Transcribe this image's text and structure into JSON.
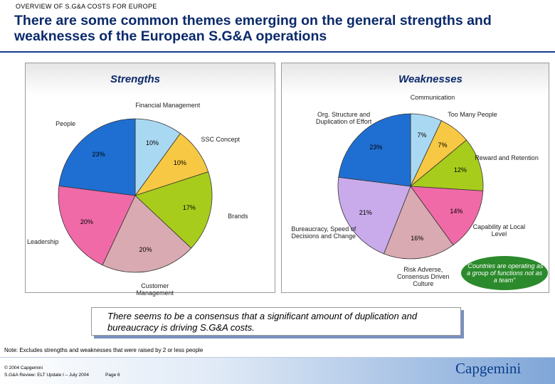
{
  "header": {
    "kicker": "OVERVIEW OF S.G&A COSTS FOR EUROPE",
    "title": "There are some common themes emerging on the general strengths and weaknesses of the European S.G&A operations"
  },
  "chart_data": [
    {
      "type": "pie",
      "title": "Strengths",
      "categories": [
        "Financial Management",
        "SSC Concept",
        "Brands",
        "Customer Management",
        "Leadership",
        "People"
      ],
      "values": [
        10,
        10,
        17,
        20,
        20,
        23
      ],
      "value_labels": [
        "10%",
        "10%",
        "17%",
        "20%",
        "20%",
        "23%"
      ],
      "colors": [
        "#a9d9f2",
        "#f7c843",
        "#a8cc1c",
        "#d9aab2",
        "#f06aa8",
        "#1f6fd2"
      ]
    },
    {
      "type": "pie",
      "title": "Weaknesses",
      "categories": [
        "Communication",
        "Too Many People",
        "Reward and Retention",
        "Capability at Local Level",
        "Risk Adverse, Consensus Driven Culture",
        "Bureaucracy, Speed of Decisions and Change",
        "Org. Structure and Duplication of Effort"
      ],
      "values": [
        7,
        7,
        12,
        14,
        16,
        21,
        23
      ],
      "value_labels": [
        "7%",
        "7%",
        "12%",
        "14%",
        "16%",
        "21%",
        "23%"
      ],
      "colors": [
        "#a9d9f2",
        "#f7c843",
        "#a8cc1c",
        "#f06aa8",
        "#d9aab2",
        "#c9aaea",
        "#1f6fd2"
      ]
    }
  ],
  "callout": "“Countries are operating as a group of functions not as a team”",
  "conclusion": "There seems to be a consensus that a significant amount of duplication and bureaucracy is driving S.G&A costs.",
  "note": "Note: Excludes strengths and weaknesses that were raised by 2 or less people",
  "footer": {
    "copyright": "© 2004 Capgemini",
    "subtitle": "S.G&A Review: ELT Update I – July 2004",
    "page": "Page 6",
    "logo": "Capgemini"
  }
}
